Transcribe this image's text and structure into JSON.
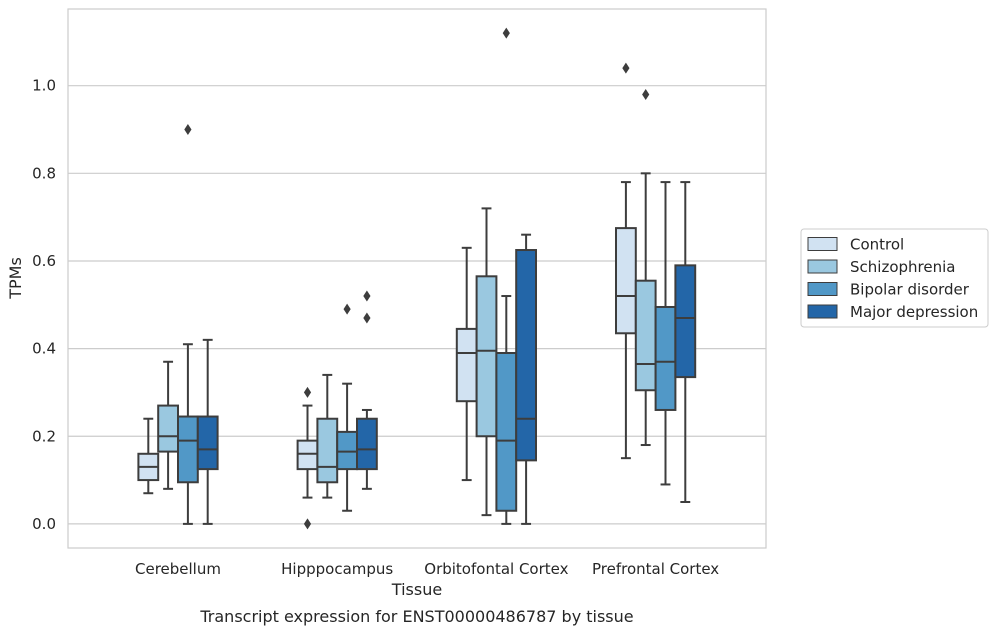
{
  "chart_data": {
    "type": "box",
    "title": "",
    "caption": "Transcript expression for ENST00000486787 by tissue",
    "xlabel": "Tissue",
    "ylabel": "TPMs",
    "ylim": [
      -0.055,
      1.175
    ],
    "yticks": [
      0.0,
      0.2,
      0.4,
      0.6,
      0.8,
      1.0
    ],
    "ytick_labels": [
      "0.0",
      "0.2",
      "0.4",
      "0.6",
      "0.8",
      "1.0"
    ],
    "grid": true,
    "legend_position": "right",
    "categories": [
      "Cerebellum",
      "Hipppocampus",
      "Orbitofontal Cortex",
      "Prefrontal Cortex"
    ],
    "series": [
      {
        "name": "Control",
        "color": "#d1e2f2",
        "boxes": [
          {
            "whisker_low": 0.07,
            "q1": 0.1,
            "median": 0.13,
            "q3": 0.16,
            "whisker_high": 0.24,
            "outliers": []
          },
          {
            "whisker_low": 0.06,
            "q1": 0.125,
            "median": 0.16,
            "q3": 0.19,
            "whisker_high": 0.27,
            "outliers": [
              0.0,
              0.3
            ]
          },
          {
            "whisker_low": 0.1,
            "q1": 0.28,
            "median": 0.39,
            "q3": 0.445,
            "whisker_high": 0.63,
            "outliers": []
          },
          {
            "whisker_low": 0.15,
            "q1": 0.435,
            "median": 0.52,
            "q3": 0.675,
            "whisker_high": 0.78,
            "outliers": [
              1.04
            ]
          }
        ]
      },
      {
        "name": "Schizophrenia",
        "color": "#9ac8e0",
        "boxes": [
          {
            "whisker_low": 0.08,
            "q1": 0.165,
            "median": 0.2,
            "q3": 0.27,
            "whisker_high": 0.37,
            "outliers": []
          },
          {
            "whisker_low": 0.06,
            "q1": 0.095,
            "median": 0.13,
            "q3": 0.24,
            "whisker_high": 0.34,
            "outliers": []
          },
          {
            "whisker_low": 0.02,
            "q1": 0.2,
            "median": 0.395,
            "q3": 0.565,
            "whisker_high": 0.72,
            "outliers": []
          },
          {
            "whisker_low": 0.18,
            "q1": 0.305,
            "median": 0.365,
            "q3": 0.555,
            "whisker_high": 0.8,
            "outliers": [
              0.98
            ]
          }
        ]
      },
      {
        "name": "Bipolar disorder",
        "color": "#5198c7",
        "boxes": [
          {
            "whisker_low": 0.0,
            "q1": 0.095,
            "median": 0.19,
            "q3": 0.245,
            "whisker_high": 0.41,
            "outliers": [
              0.9
            ]
          },
          {
            "whisker_low": 0.03,
            "q1": 0.125,
            "median": 0.165,
            "q3": 0.21,
            "whisker_high": 0.32,
            "outliers": [
              0.49
            ]
          },
          {
            "whisker_low": 0.0,
            "q1": 0.03,
            "median": 0.19,
            "q3": 0.39,
            "whisker_high": 0.52,
            "outliers": [
              1.12
            ]
          },
          {
            "whisker_low": 0.09,
            "q1": 0.26,
            "median": 0.37,
            "q3": 0.495,
            "whisker_high": 0.78,
            "outliers": []
          }
        ]
      },
      {
        "name": "Major depression",
        "color": "#2366a8",
        "boxes": [
          {
            "whisker_low": 0.0,
            "q1": 0.125,
            "median": 0.17,
            "q3": 0.245,
            "whisker_high": 0.42,
            "outliers": []
          },
          {
            "whisker_low": 0.08,
            "q1": 0.125,
            "median": 0.17,
            "q3": 0.24,
            "whisker_high": 0.26,
            "outliers": [
              0.47,
              0.52
            ]
          },
          {
            "whisker_low": 0.0,
            "q1": 0.145,
            "median": 0.24,
            "q3": 0.625,
            "whisker_high": 0.66,
            "outliers": []
          },
          {
            "whisker_low": 0.05,
            "q1": 0.335,
            "median": 0.47,
            "q3": 0.59,
            "whisker_high": 0.78,
            "outliers": []
          }
        ]
      }
    ]
  }
}
